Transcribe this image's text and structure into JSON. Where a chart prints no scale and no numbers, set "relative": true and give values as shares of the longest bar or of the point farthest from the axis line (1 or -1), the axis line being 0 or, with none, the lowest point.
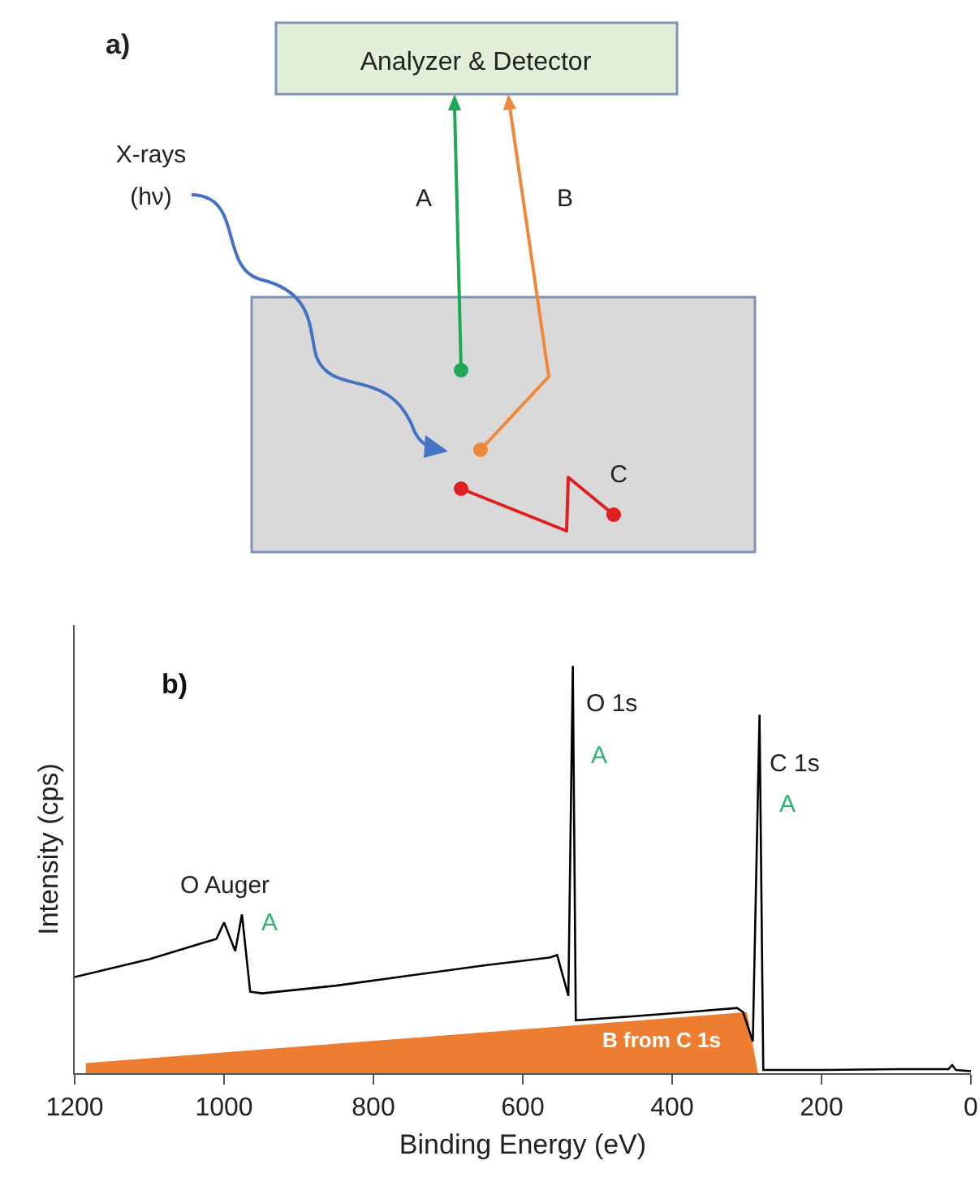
{
  "chart_data": [
    {
      "type": "other",
      "title": "a)",
      "annotations": [
        "Analyzer & Detector",
        "X-rays (hν)",
        "A",
        "B",
        "C"
      ]
    },
    {
      "type": "line",
      "title": "b)",
      "xlabel": "Binding Energy (eV)",
      "ylabel": "Intensity (cps)",
      "relative": true,
      "xlim": [
        1200,
        0
      ],
      "xticks": [
        1200,
        1000,
        800,
        600,
        400,
        200,
        0
      ],
      "series": [
        {
          "type": "area",
          "color": "#ed7d31",
          "x": [
            1185,
            1185,
            300,
            285
          ],
          "values": [
            0,
            0.025,
            0.15,
            0
          ]
        },
        {
          "type": "line",
          "color": "#000000",
          "x": [
            1200,
            1100,
            1010,
            1000,
            985,
            976,
            965,
            949,
            850,
            750,
            650,
            564,
            554,
            539,
            533,
            529,
            450,
            380,
            313,
            305,
            292,
            283,
            278,
            200,
            100,
            30,
            25,
            20,
            0
          ],
          "values": [
            0.236,
            0.28,
            0.33,
            0.37,
            0.3,
            0.39,
            0.2,
            0.196,
            0.215,
            0.24,
            0.265,
            0.284,
            0.29,
            0.19,
            1.0,
            0.13,
            0.14,
            0.15,
            0.16,
            0.15,
            0.078,
            0.88,
            0.008,
            0.008,
            0.01,
            0.01,
            0.02,
            0.008,
            0.005
          ]
        }
      ],
      "annotations": [
        "O Auger",
        "A",
        "O 1s",
        "A",
        "C 1s",
        "A",
        "B from C 1s"
      ]
    }
  ]
}
